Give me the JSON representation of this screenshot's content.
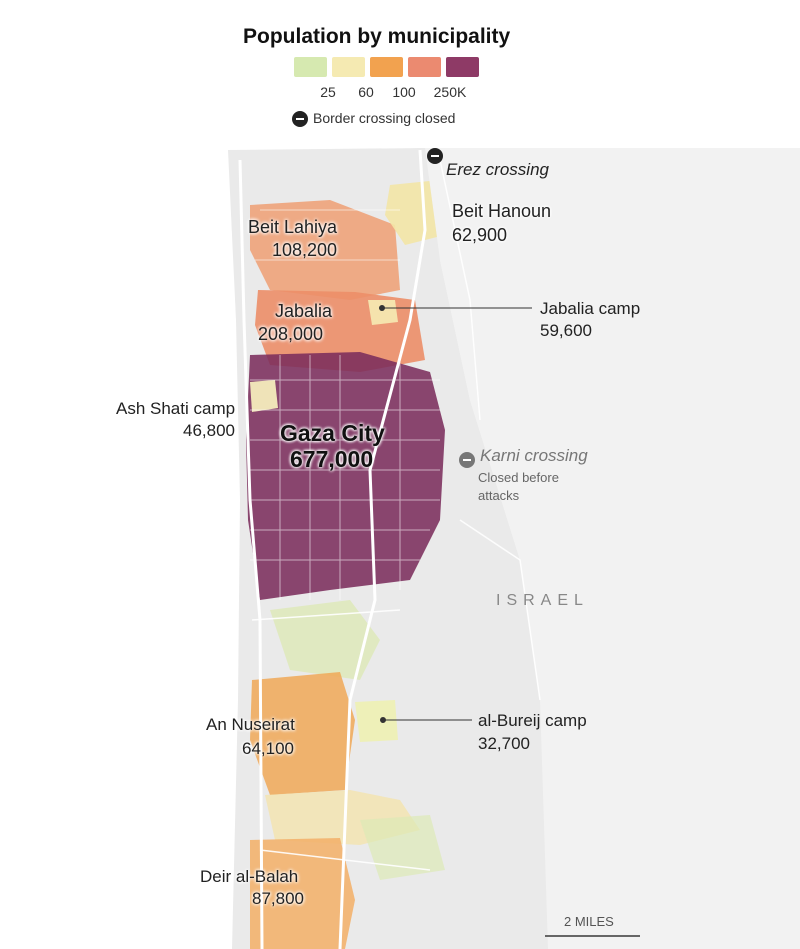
{
  "legend": {
    "title": "Population by municipality",
    "colors": [
      "#d6e9b0",
      "#f5eab2",
      "#f2a24f",
      "#eb8a70",
      "#8e3a66"
    ],
    "ticks": [
      "25",
      "60",
      "100",
      "250K"
    ],
    "border_closed_label": "Border crossing closed",
    "border_closed_icon": "minus-circle-icon"
  },
  "map": {
    "colors": {
      "land": "#eeeeee",
      "sea": "#ffffff",
      "roads": "#ffffff",
      "gaza_city": "#7b2d5c",
      "jabalia": "#ec8e68",
      "beit_lahiya": "#ef9f73",
      "beit_hanoun": "#f3e6a6",
      "nuseirat": "#f0a857",
      "deir_al_balah": "#f2b16a",
      "bureij": "#eef0b8",
      "sparse": "#dde9b6"
    },
    "country_label": "ISRAEL",
    "crossings": [
      {
        "id": "erez",
        "name": "Erez crossing"
      },
      {
        "id": "karni",
        "name": "Karni crossing",
        "note_line1": "Closed before",
        "note_line2": "attacks"
      }
    ],
    "places": {
      "beit_lahiya": {
        "name": "Beit Lahiya",
        "population": "108,200"
      },
      "beit_hanoun": {
        "name": "Beit Hanoun",
        "population": "62,900"
      },
      "jabalia": {
        "name": "Jabalia",
        "population": "208,000"
      },
      "jabalia_camp": {
        "name": "Jabalia camp",
        "population": "59,600"
      },
      "ash_shati": {
        "name": "Ash Shati camp",
        "population": "46,800"
      },
      "gaza_city": {
        "name": "Gaza City",
        "population": "677,000"
      },
      "nuseirat": {
        "name": "An Nuseirat",
        "population": "64,100"
      },
      "bureij": {
        "name": "al-Bureij camp",
        "population": "32,700"
      },
      "deir_al_balah": {
        "name": "Deir al-Balah",
        "population": "87,800"
      }
    },
    "scale_bar": {
      "label": "2 MILES"
    }
  }
}
